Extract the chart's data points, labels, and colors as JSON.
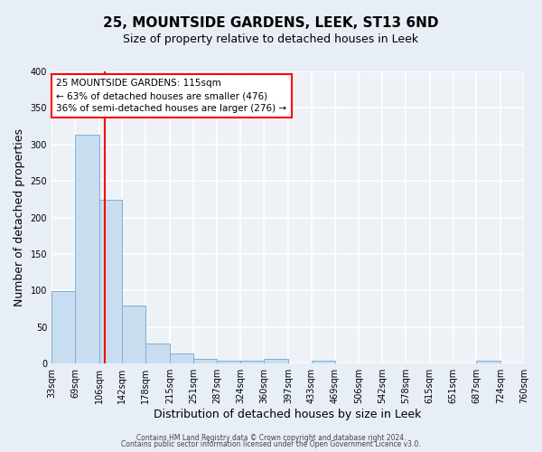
{
  "title": "25, MOUNTSIDE GARDENS, LEEK, ST13 6ND",
  "subtitle": "Size of property relative to detached houses in Leek",
  "xlabel": "Distribution of detached houses by size in Leek",
  "ylabel": "Number of detached properties",
  "bin_edges": [
    33,
    69,
    106,
    142,
    178,
    215,
    251,
    287,
    324,
    360,
    397,
    433,
    469,
    506,
    542,
    578,
    615,
    651,
    687,
    724,
    760
  ],
  "bin_labels": [
    "33sqm",
    "69sqm",
    "106sqm",
    "142sqm",
    "178sqm",
    "215sqm",
    "251sqm",
    "287sqm",
    "324sqm",
    "360sqm",
    "397sqm",
    "433sqm",
    "469sqm",
    "506sqm",
    "542sqm",
    "578sqm",
    "615sqm",
    "651sqm",
    "687sqm",
    "724sqm",
    "760sqm"
  ],
  "bar_heights": [
    99,
    313,
    224,
    80,
    27,
    14,
    6,
    4,
    4,
    6,
    0,
    4,
    0,
    0,
    0,
    0,
    0,
    0,
    4,
    0,
    0
  ],
  "bar_color": "#c8ddf0",
  "bar_edge_color": "#7ab0d8",
  "property_line_x": 115,
  "property_line_color": "red",
  "ylim": [
    0,
    400
  ],
  "yticks": [
    0,
    50,
    100,
    150,
    200,
    250,
    300,
    350,
    400
  ],
  "annotation_title": "25 MOUNTSIDE GARDENS: 115sqm",
  "annotation_line1": "← 63% of detached houses are smaller (476)",
  "annotation_line2": "36% of semi-detached houses are larger (276) →",
  "annotation_box_color": "red",
  "footer_line1": "Contains HM Land Registry data © Crown copyright and database right 2024.",
  "footer_line2": "Contains public sector information licensed under the Open Government Licence v3.0.",
  "bg_color": "#e8eef5",
  "plot_bg_color": "#eef2f7",
  "grid_color": "#ffffff",
  "title_fontsize": 11,
  "subtitle_fontsize": 9,
  "tick_fontsize": 7,
  "label_fontsize": 9
}
